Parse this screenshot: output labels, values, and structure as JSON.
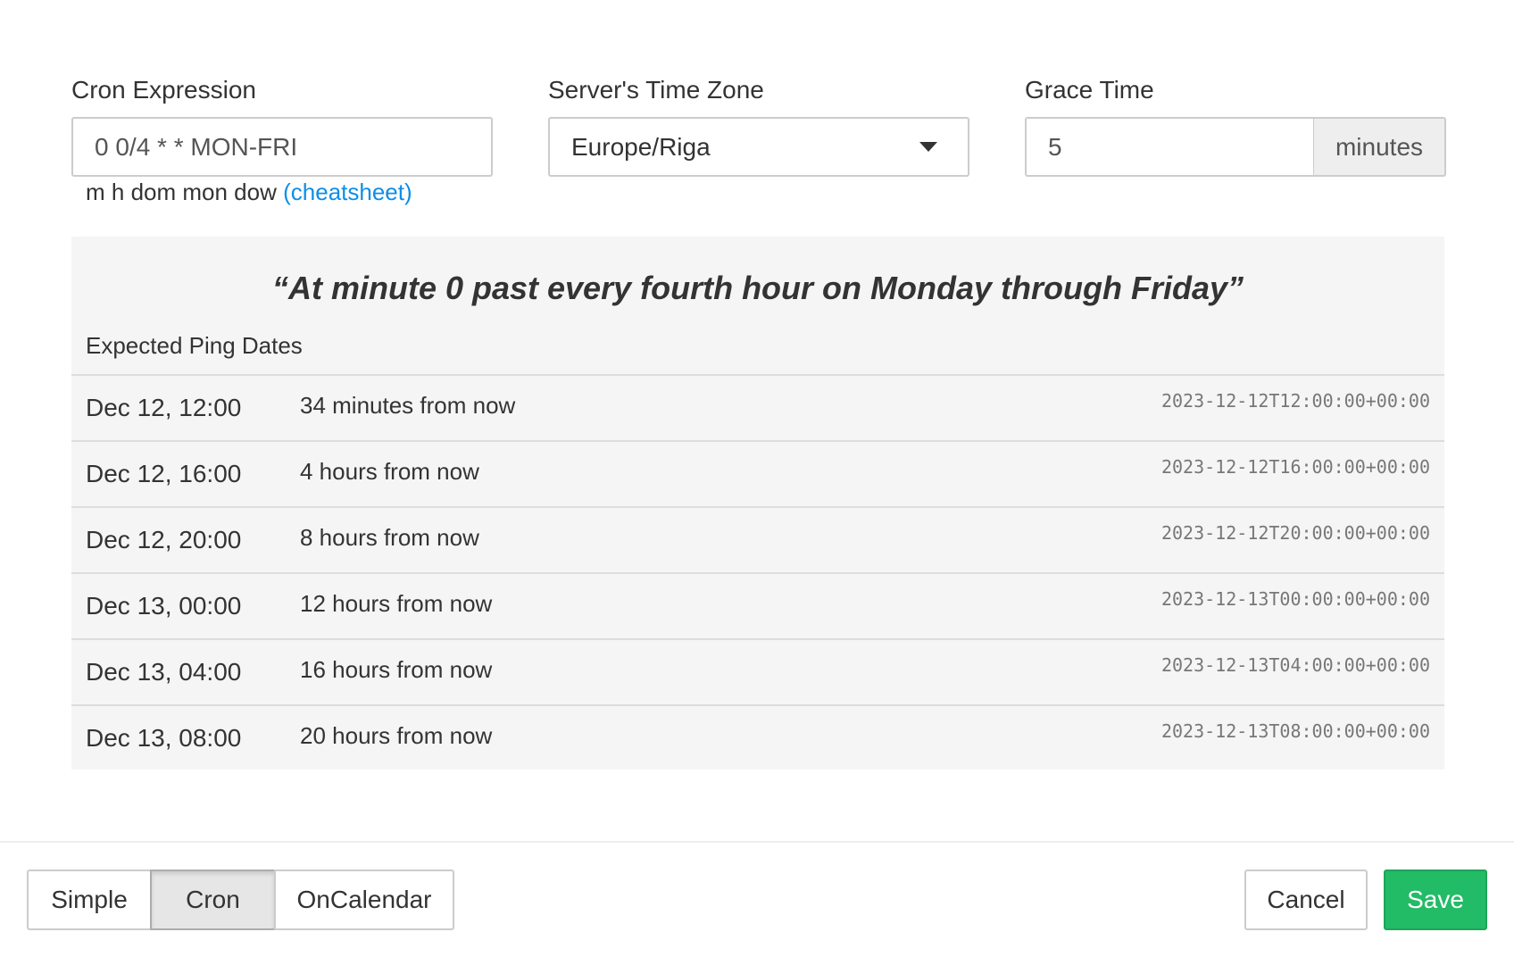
{
  "cron": {
    "label": "Cron Expression",
    "value": "0 0/4 * * MON-FRI",
    "hint": "m h dom mon dow",
    "cheatsheet": "(cheatsheet)"
  },
  "tz": {
    "label": "Server's Time Zone",
    "value": "Europe/Riga"
  },
  "grace": {
    "label": "Grace Time",
    "value": "5",
    "unit": "minutes"
  },
  "description": "“At minute 0 past every fourth hour on Monday through Friday”",
  "expected_title": "Expected Ping Dates",
  "pings": [
    {
      "date": "Dec 12, 12:00",
      "relative": "34 minutes from now",
      "iso": "2023-12-12T12:00:00+00:00"
    },
    {
      "date": "Dec 12, 16:00",
      "relative": "4 hours from now",
      "iso": "2023-12-12T16:00:00+00:00"
    },
    {
      "date": "Dec 12, 20:00",
      "relative": "8 hours from now",
      "iso": "2023-12-12T20:00:00+00:00"
    },
    {
      "date": "Dec 13, 00:00",
      "relative": "12 hours from now",
      "iso": "2023-12-13T00:00:00+00:00"
    },
    {
      "date": "Dec 13, 04:00",
      "relative": "16 hours from now",
      "iso": "2023-12-13T04:00:00+00:00"
    },
    {
      "date": "Dec 13, 08:00",
      "relative": "20 hours from now",
      "iso": "2023-12-13T08:00:00+00:00"
    }
  ],
  "footer": {
    "modes": [
      "Simple",
      "Cron",
      "OnCalendar"
    ],
    "active_mode": "Cron",
    "cancel": "Cancel",
    "save": "Save"
  },
  "colors": {
    "save": "#22bb66",
    "link": "#0d8ee8"
  }
}
